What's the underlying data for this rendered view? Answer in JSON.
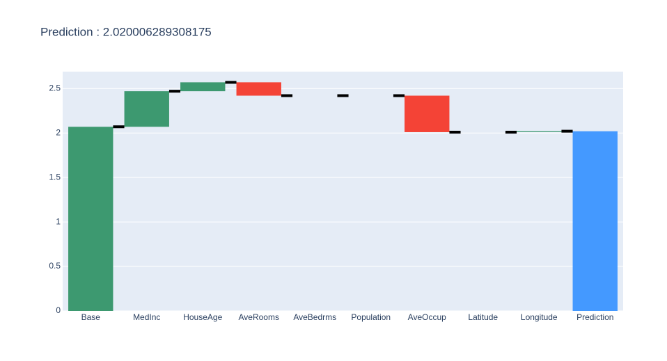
{
  "chart_data": {
    "type": "waterfall",
    "title": "Prediction : 2.020006289308175",
    "categories": [
      "Base",
      "MedInc",
      "HouseAge",
      "AveRooms",
      "AveBedrms",
      "Population",
      "AveOccup",
      "Latitude",
      "Longitude",
      "Prediction"
    ],
    "measure": [
      "absolute",
      "relative",
      "relative",
      "relative",
      "relative",
      "relative",
      "relative",
      "relative",
      "relative",
      "total"
    ],
    "values": [
      2.07,
      0.4,
      0.1,
      -0.15,
      0,
      0,
      -0.41,
      0,
      0.01,
      2.02
    ],
    "increasing_color": "#3d9970",
    "decreasing_color": "#f44336",
    "total_color": "#4499ff",
    "connector_color": "#000000",
    "ylim": [
      0,
      2.69
    ],
    "yticks": [
      0,
      0.5,
      1,
      1.5,
      2,
      2.5
    ],
    "grid": true
  }
}
